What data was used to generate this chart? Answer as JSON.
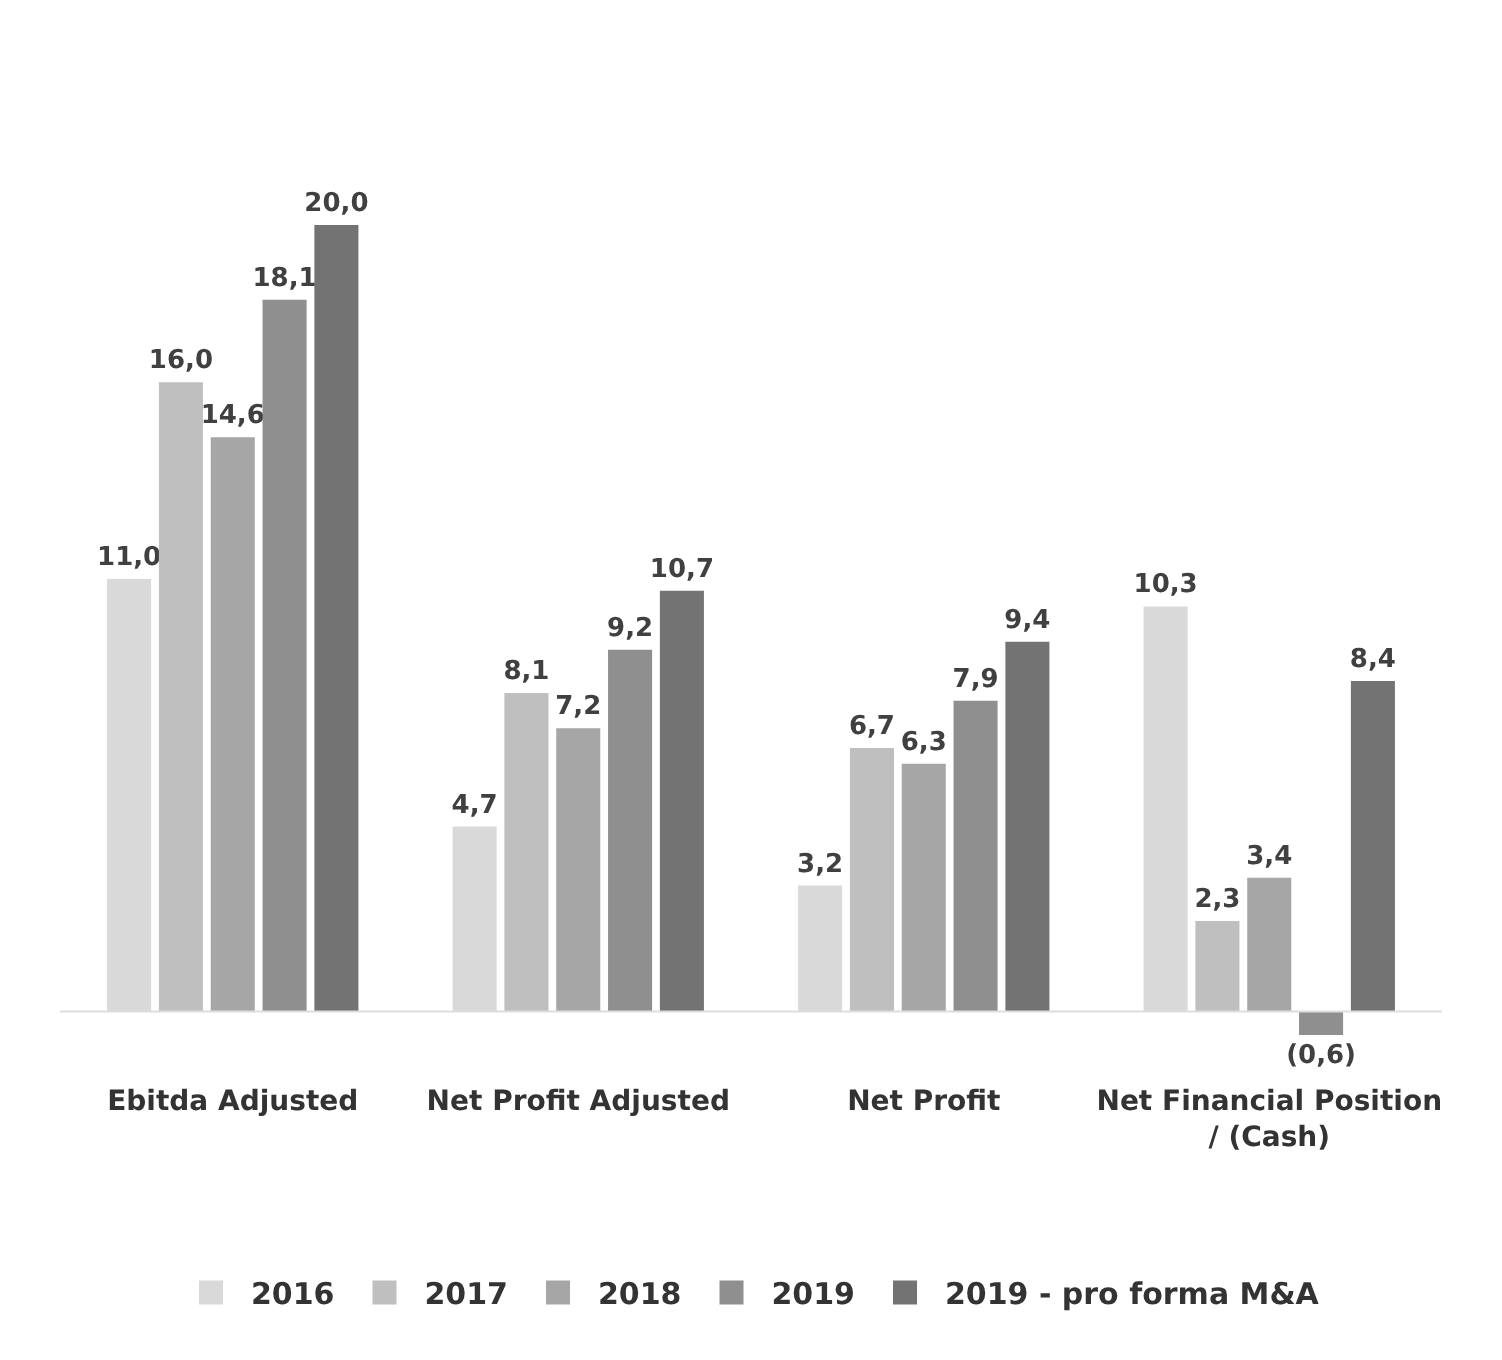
{
  "chart_data": {
    "type": "bar",
    "categories": [
      "Ebitda Adjusted",
      "Net Profit Adjusted",
      "Net Profit",
      "Net Financial Position / (Cash)"
    ],
    "series": [
      {
        "name": "2016",
        "color": "#d9d9d9",
        "values": [
          11.0,
          4.7,
          3.2,
          10.3
        ],
        "value_labels": [
          "11,0",
          "4,7",
          "3,2",
          "10,3"
        ]
      },
      {
        "name": "2017",
        "color": "#bfbfbf",
        "values": [
          16.0,
          8.1,
          6.7,
          2.3
        ],
        "value_labels": [
          "16,0",
          "8,1",
          "6,7",
          "2,3"
        ]
      },
      {
        "name": "2018",
        "color": "#a6a6a6",
        "values": [
          14.6,
          7.2,
          6.3,
          3.4
        ],
        "value_labels": [
          "14,6",
          "7,2",
          "6,3",
          "3,4"
        ]
      },
      {
        "name": "2019",
        "color": "#8f8f8f",
        "values": [
          18.1,
          9.2,
          7.9,
          -0.6
        ],
        "value_labels": [
          "18,1",
          "9,2",
          "7,9",
          "(0,6)"
        ]
      },
      {
        "name": "2019 - pro forma M&A",
        "color": "#737373",
        "values": [
          20.0,
          10.7,
          9.4,
          8.4
        ],
        "value_labels": [
          "20,0",
          "10,7",
          "9,4",
          "8,4"
        ]
      }
    ],
    "legend": "bottom"
  }
}
